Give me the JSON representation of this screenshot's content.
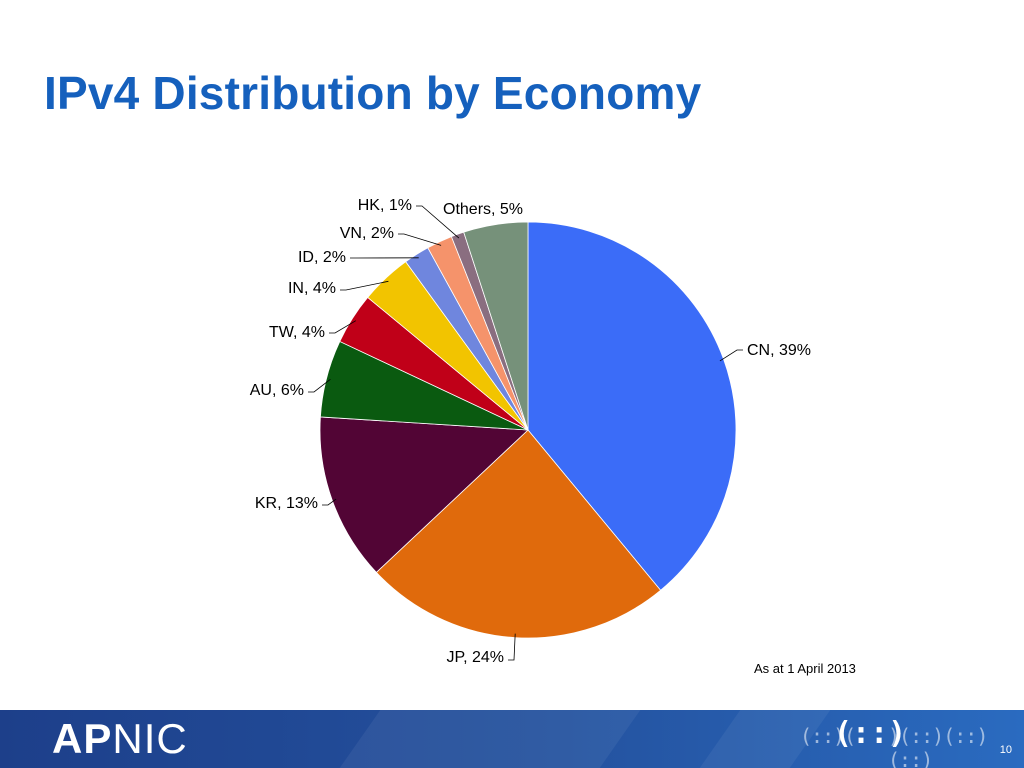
{
  "slide": {
    "title": "IPv4 Distribution by Economy",
    "note": "As at 1 April 2013",
    "page_number": "10"
  },
  "footer": {
    "logo_strong": "AP",
    "logo_light": "NIC",
    "glyph_left": "(::)(",
    "glyph_center": "(::)",
    "glyph_right": ")(::)(::)(::)"
  },
  "colors": {
    "title": "#1560bd",
    "footer": "#24529f"
  },
  "chart_data": {
    "type": "pie",
    "title": "",
    "start": "top",
    "direction": "clockwise",
    "slices": [
      {
        "label": "CN, 39%",
        "category": "CN",
        "value": 39,
        "color": "#3b6cf8"
      },
      {
        "label": "JP, 24%",
        "category": "JP",
        "value": 24,
        "color": "#e06a0c"
      },
      {
        "label": "KR, 13%",
        "category": "KR",
        "value": 13,
        "color": "#520535"
      },
      {
        "label": "AU, 6%",
        "category": "AU",
        "value": 6,
        "color": "#0a5a10"
      },
      {
        "label": "TW, 4%",
        "category": "TW",
        "value": 4,
        "color": "#c00018"
      },
      {
        "label": "IN, 4%",
        "category": "IN",
        "value": 4,
        "color": "#f2c400"
      },
      {
        "label": "ID, 2%",
        "category": "ID",
        "value": 2,
        "color": "#6f86de"
      },
      {
        "label": "VN, 2%",
        "category": "VN",
        "value": 2,
        "color": "#f5936b"
      },
      {
        "label": "HK, 1%",
        "category": "HK",
        "value": 1,
        "color": "#8a6e80"
      },
      {
        "label": "Others, 5%",
        "category": "Others",
        "value": 5,
        "color": "#76917a"
      }
    ]
  }
}
